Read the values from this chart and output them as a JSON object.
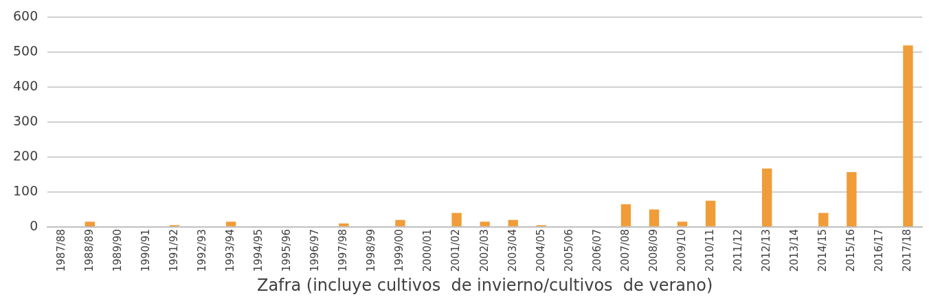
{
  "chart_data": {
    "type": "bar",
    "xlabel": "Zafra (incluye cultivos  de invierno/cultivos  de verano)",
    "categories": [
      "1987/88",
      "1988/89",
      "1989/90",
      "1990/91",
      "1991/92",
      "1992/93",
      "1993/94",
      "1994/95",
      "1995/96",
      "1996/97",
      "1997/98",
      "1998/99",
      "1999/00",
      "2000/01",
      "2001/02",
      "2002/03",
      "2003/04",
      "2004/05",
      "2005/06",
      "2006/07",
      "2007/08",
      "2008/09",
      "2009/10",
      "2010/11",
      "2011/12",
      "2012/13",
      "2013/14",
      "2014/15",
      "2015/16",
      "2016/17",
      "2017/18"
    ],
    "values": [
      0,
      15,
      0,
      0,
      5,
      0,
      15,
      0,
      0,
      0,
      10,
      0,
      20,
      0,
      40,
      15,
      20,
      5,
      0,
      0,
      65,
      50,
      15,
      75,
      0,
      167,
      0,
      40,
      157,
      0,
      520
    ],
    "color": "#f09c38",
    "ylim": [
      0,
      600
    ],
    "yticks": [
      0,
      100,
      200,
      300,
      400,
      500,
      600
    ],
    "grid": "y",
    "legend": false
  }
}
